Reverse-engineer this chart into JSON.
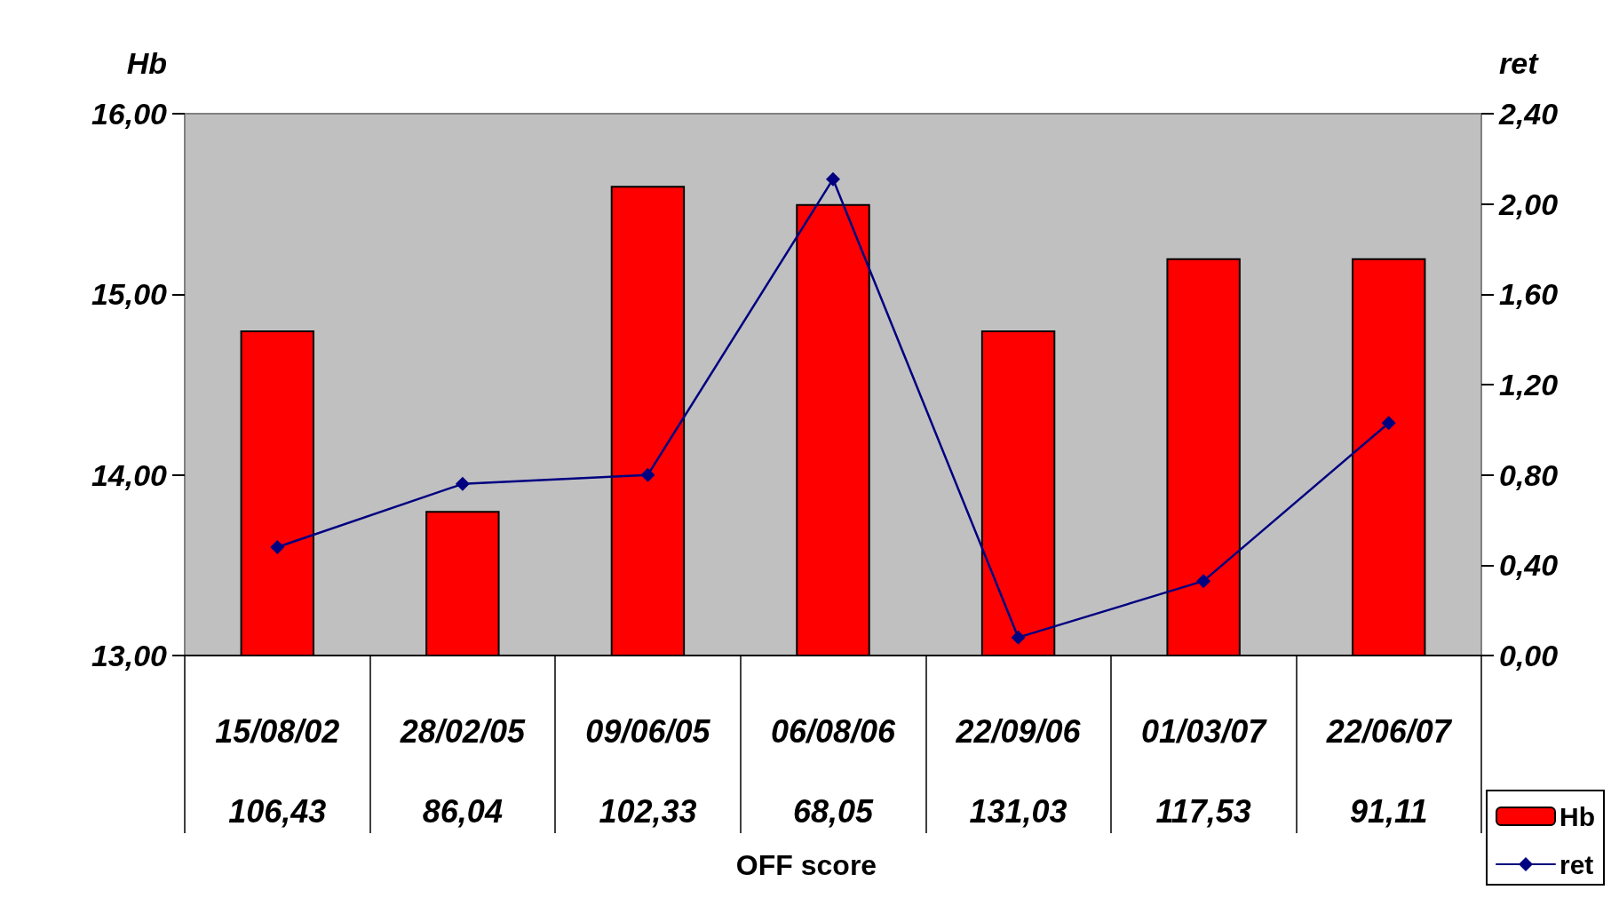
{
  "chart_data": {
    "type": "bar",
    "annotations": [
      "OFF score"
    ],
    "ylabel": "Hb",
    "y2label": "ret",
    "categories": [
      "15/08/02\n106,43",
      "28/02/05\n86,04",
      "09/06/05\n102,33",
      "06/08/06\n68,05",
      "22/09/06\n131,03",
      "01/03/07\n117,53",
      "22/06/07\n91,11"
    ],
    "series": [
      {
        "name": "Hb",
        "color": "#ff0000",
        "values": [
          14.8,
          13.8,
          15.6,
          15.5,
          14.8,
          15.2,
          15.2
        ]
      },
      {
        "name": "ret",
        "type": "line",
        "axis": "y2",
        "color": "#000080",
        "marker": "diamond",
        "line_style": "solid",
        "values": [
          0.48,
          0.76,
          0.8,
          2.11,
          0.08,
          0.33,
          1.03
        ]
      }
    ],
    "ylim": [
      13,
      16
    ],
    "yticks": [
      {
        "value": 13,
        "label": "13,00"
      },
      {
        "value": 14,
        "label": "14,00"
      },
      {
        "value": 15,
        "label": "15,00"
      },
      {
        "value": 16,
        "label": "16,00"
      }
    ],
    "y2lim": [
      0,
      2.4
    ],
    "y2ticks": [
      {
        "value": 0,
        "label": "0,00"
      },
      {
        "value": 0.4,
        "label": "0,40"
      },
      {
        "value": 0.8,
        "label": "0,80"
      },
      {
        "value": 1.2,
        "label": "1,20"
      },
      {
        "value": 1.6,
        "label": "1,60"
      },
      {
        "value": 2,
        "label": "2,00"
      },
      {
        "value": 2.4,
        "label": "2,40"
      }
    ],
    "grid": false,
    "legend": "bottom right"
  }
}
